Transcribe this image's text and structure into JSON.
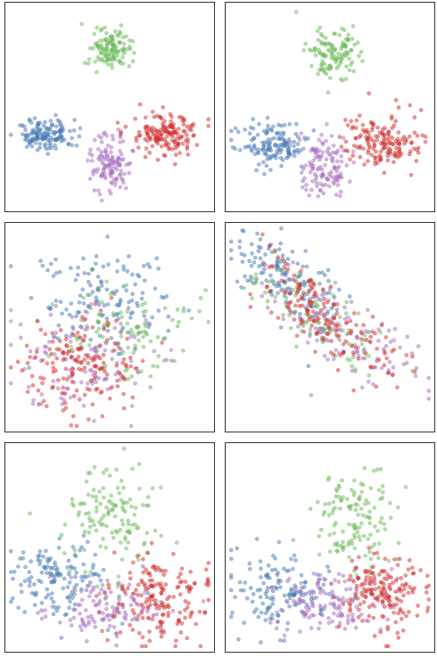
{
  "colors": {
    "blue": "#4a7bb5",
    "green": "#6cba5a",
    "purple": "#a86fbf",
    "red": "#d32f2f"
  },
  "chart_data": [
    {
      "type": "scatter",
      "title": "",
      "xlabel": "",
      "ylabel": "",
      "legend": "none",
      "grid": false,
      "xlim": [
        0,
        100
      ],
      "ylim": [
        0,
        100
      ],
      "series": [
        {
          "color_key": "green",
          "n": 120,
          "center": [
            50,
            78
          ],
          "spread": [
            5,
            5
          ],
          "rot": 0
        },
        {
          "color_key": "blue",
          "n": 140,
          "center": [
            18,
            36
          ],
          "spread": [
            7,
            4
          ],
          "rot": 0
        },
        {
          "color_key": "purple",
          "n": 120,
          "center": [
            50,
            22
          ],
          "spread": [
            5.5,
            7
          ],
          "rot": 0
        },
        {
          "color_key": "red",
          "n": 160,
          "center": [
            78,
            36
          ],
          "spread": [
            9,
            5
          ],
          "rot": 0
        }
      ]
    },
    {
      "type": "scatter",
      "title": "",
      "xlabel": "",
      "ylabel": "",
      "legend": "none",
      "grid": false,
      "xlim": [
        0,
        100
      ],
      "ylim": [
        0,
        100
      ],
      "series": [
        {
          "color_key": "green",
          "n": 120,
          "center": [
            52,
            76
          ],
          "spread": [
            6.5,
            7
          ],
          "rot": 0
        },
        {
          "color_key": "blue",
          "n": 140,
          "center": [
            20,
            31
          ],
          "spread": [
            9,
            5.5
          ],
          "rot": 0
        },
        {
          "color_key": "purple",
          "n": 120,
          "center": [
            48,
            20
          ],
          "spread": [
            6.5,
            8
          ],
          "rot": 0
        },
        {
          "color_key": "red",
          "n": 160,
          "center": [
            78,
            33
          ],
          "spread": [
            10,
            6.5
          ],
          "rot": 0
        }
      ]
    },
    {
      "type": "scatter",
      "title": "",
      "xlabel": "",
      "ylabel": "",
      "legend": "none",
      "grid": false,
      "xlim": [
        0,
        100
      ],
      "ylim": [
        0,
        100
      ],
      "series": [
        {
          "color_key": "blue",
          "n": 140,
          "center": [
            47,
            66
          ],
          "spread": [
            17,
            13
          ],
          "rot": 0
        },
        {
          "color_key": "green",
          "n": 100,
          "center": [
            60,
            47
          ],
          "spread": [
            19,
            13
          ],
          "rot": 0
        },
        {
          "color_key": "purple",
          "n": 110,
          "center": [
            38,
            34
          ],
          "spread": [
            19,
            14
          ],
          "rot": 0
        },
        {
          "color_key": "red",
          "n": 160,
          "center": [
            35,
            33
          ],
          "spread": [
            15,
            13
          ],
          "rot": 0
        }
      ]
    },
    {
      "type": "scatter",
      "title": "",
      "xlabel": "",
      "ylabel": "",
      "legend": "none",
      "grid": false,
      "xlim": [
        0,
        100
      ],
      "ylim": [
        0,
        100
      ],
      "series": [
        {
          "color_key": "blue",
          "n": 140,
          "center": [
            28,
            76
          ],
          "spread": [
            16,
            7
          ],
          "rot": -0.6
        },
        {
          "color_key": "green",
          "n": 100,
          "center": [
            45,
            54
          ],
          "spread": [
            20,
            8
          ],
          "rot": -0.6
        },
        {
          "color_key": "purple",
          "n": 110,
          "center": [
            58,
            46
          ],
          "spread": [
            24,
            9
          ],
          "rot": -0.6
        },
        {
          "color_key": "red",
          "n": 160,
          "center": [
            50,
            54
          ],
          "spread": [
            22,
            7
          ],
          "rot": -0.7
        }
      ]
    },
    {
      "type": "scatter",
      "title": "",
      "xlabel": "",
      "ylabel": "",
      "legend": "none",
      "grid": false,
      "xlim": [
        0,
        100
      ],
      "ylim": [
        0,
        100
      ],
      "series": [
        {
          "color_key": "green",
          "n": 130,
          "center": [
            50,
            65
          ],
          "spread": [
            12,
            14
          ],
          "rot": 0
        },
        {
          "color_key": "blue",
          "n": 140,
          "center": [
            24,
            33
          ],
          "spread": [
            13,
            9
          ],
          "rot": 0
        },
        {
          "color_key": "purple",
          "n": 120,
          "center": [
            48,
            20
          ],
          "spread": [
            14,
            7
          ],
          "rot": 0
        },
        {
          "color_key": "red",
          "n": 170,
          "center": [
            74,
            24
          ],
          "spread": [
            13,
            11
          ],
          "rot": 0
        }
      ]
    },
    {
      "type": "scatter",
      "title": "",
      "xlabel": "",
      "ylabel": "",
      "legend": "none",
      "grid": false,
      "xlim": [
        0,
        100
      ],
      "ylim": [
        0,
        100
      ],
      "series": [
        {
          "color_key": "green",
          "n": 130,
          "center": [
            62,
            64
          ],
          "spread": [
            10,
            13
          ],
          "rot": 0
        },
        {
          "color_key": "blue",
          "n": 140,
          "center": [
            26,
            28
          ],
          "spread": [
            14,
            10
          ],
          "rot": 0
        },
        {
          "color_key": "purple",
          "n": 120,
          "center": [
            50,
            22
          ],
          "spread": [
            14,
            8
          ],
          "rot": 0
        },
        {
          "color_key": "red",
          "n": 170,
          "center": [
            78,
            28
          ],
          "spread": [
            10,
            9
          ],
          "rot": 0
        }
      ]
    }
  ]
}
